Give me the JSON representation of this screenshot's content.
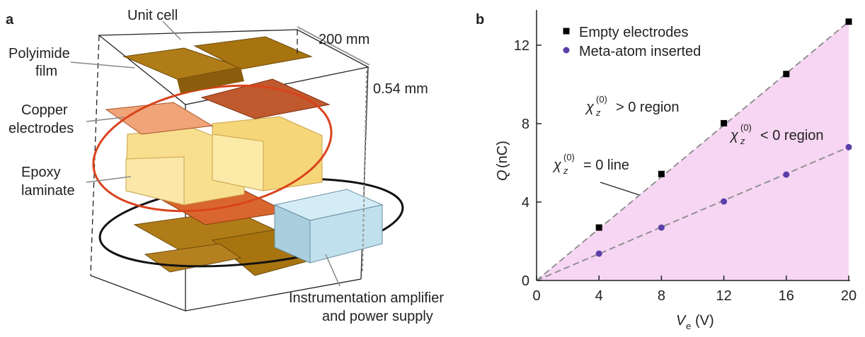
{
  "diagram": {
    "panel_label": "a",
    "labels": {
      "unit_cell": "Unit cell",
      "polyimide": [
        "Polyimide",
        "film"
      ],
      "copper": [
        "Copper",
        "electrodes"
      ],
      "epoxy": [
        "Epoxy",
        "laminate"
      ],
      "amplifier": [
        "Instrumentation amplifier",
        "and power supply"
      ],
      "width": "200 mm",
      "thickness": "0.54 mm"
    }
  },
  "chart_data": {
    "type": "scatter",
    "panel_label": "b",
    "x": [
      4,
      8,
      12,
      16,
      20
    ],
    "series": [
      {
        "name": "Empty electrodes",
        "color": "#000000",
        "marker": "square",
        "values": [
          2.7,
          5.43,
          8.02,
          10.53,
          13.2
        ]
      },
      {
        "name": "Meta-atom inserted",
        "color": "#5b3fa8",
        "marker": "circle",
        "values": [
          1.37,
          2.7,
          4.03,
          5.4,
          6.8
        ]
      }
    ],
    "xlim": [
      0,
      20
    ],
    "ylim": [
      0,
      13.8
    ],
    "xticks": [
      0,
      4,
      8,
      12,
      16,
      20
    ],
    "yticks": [
      0,
      4,
      8,
      12
    ],
    "x_label": {
      "symbol": "V",
      "sub": "e",
      "unit": "(V)"
    },
    "y_label": {
      "symbol": "Q",
      "unit": "(nC)"
    },
    "annotations": [
      {
        "symbol": "χ",
        "sub": "z",
        "sup": "(0)",
        "text": "> 0  region"
      },
      {
        "symbol": "χ",
        "sub": "z",
        "sup": "(0)",
        "text": "< 0  region"
      },
      {
        "symbol": "χ",
        "sub": "z",
        "sup": "(0)",
        "text": "= 0  line"
      }
    ],
    "region_color": "#f6d6f2",
    "fit_color": "#8a8a8a"
  }
}
